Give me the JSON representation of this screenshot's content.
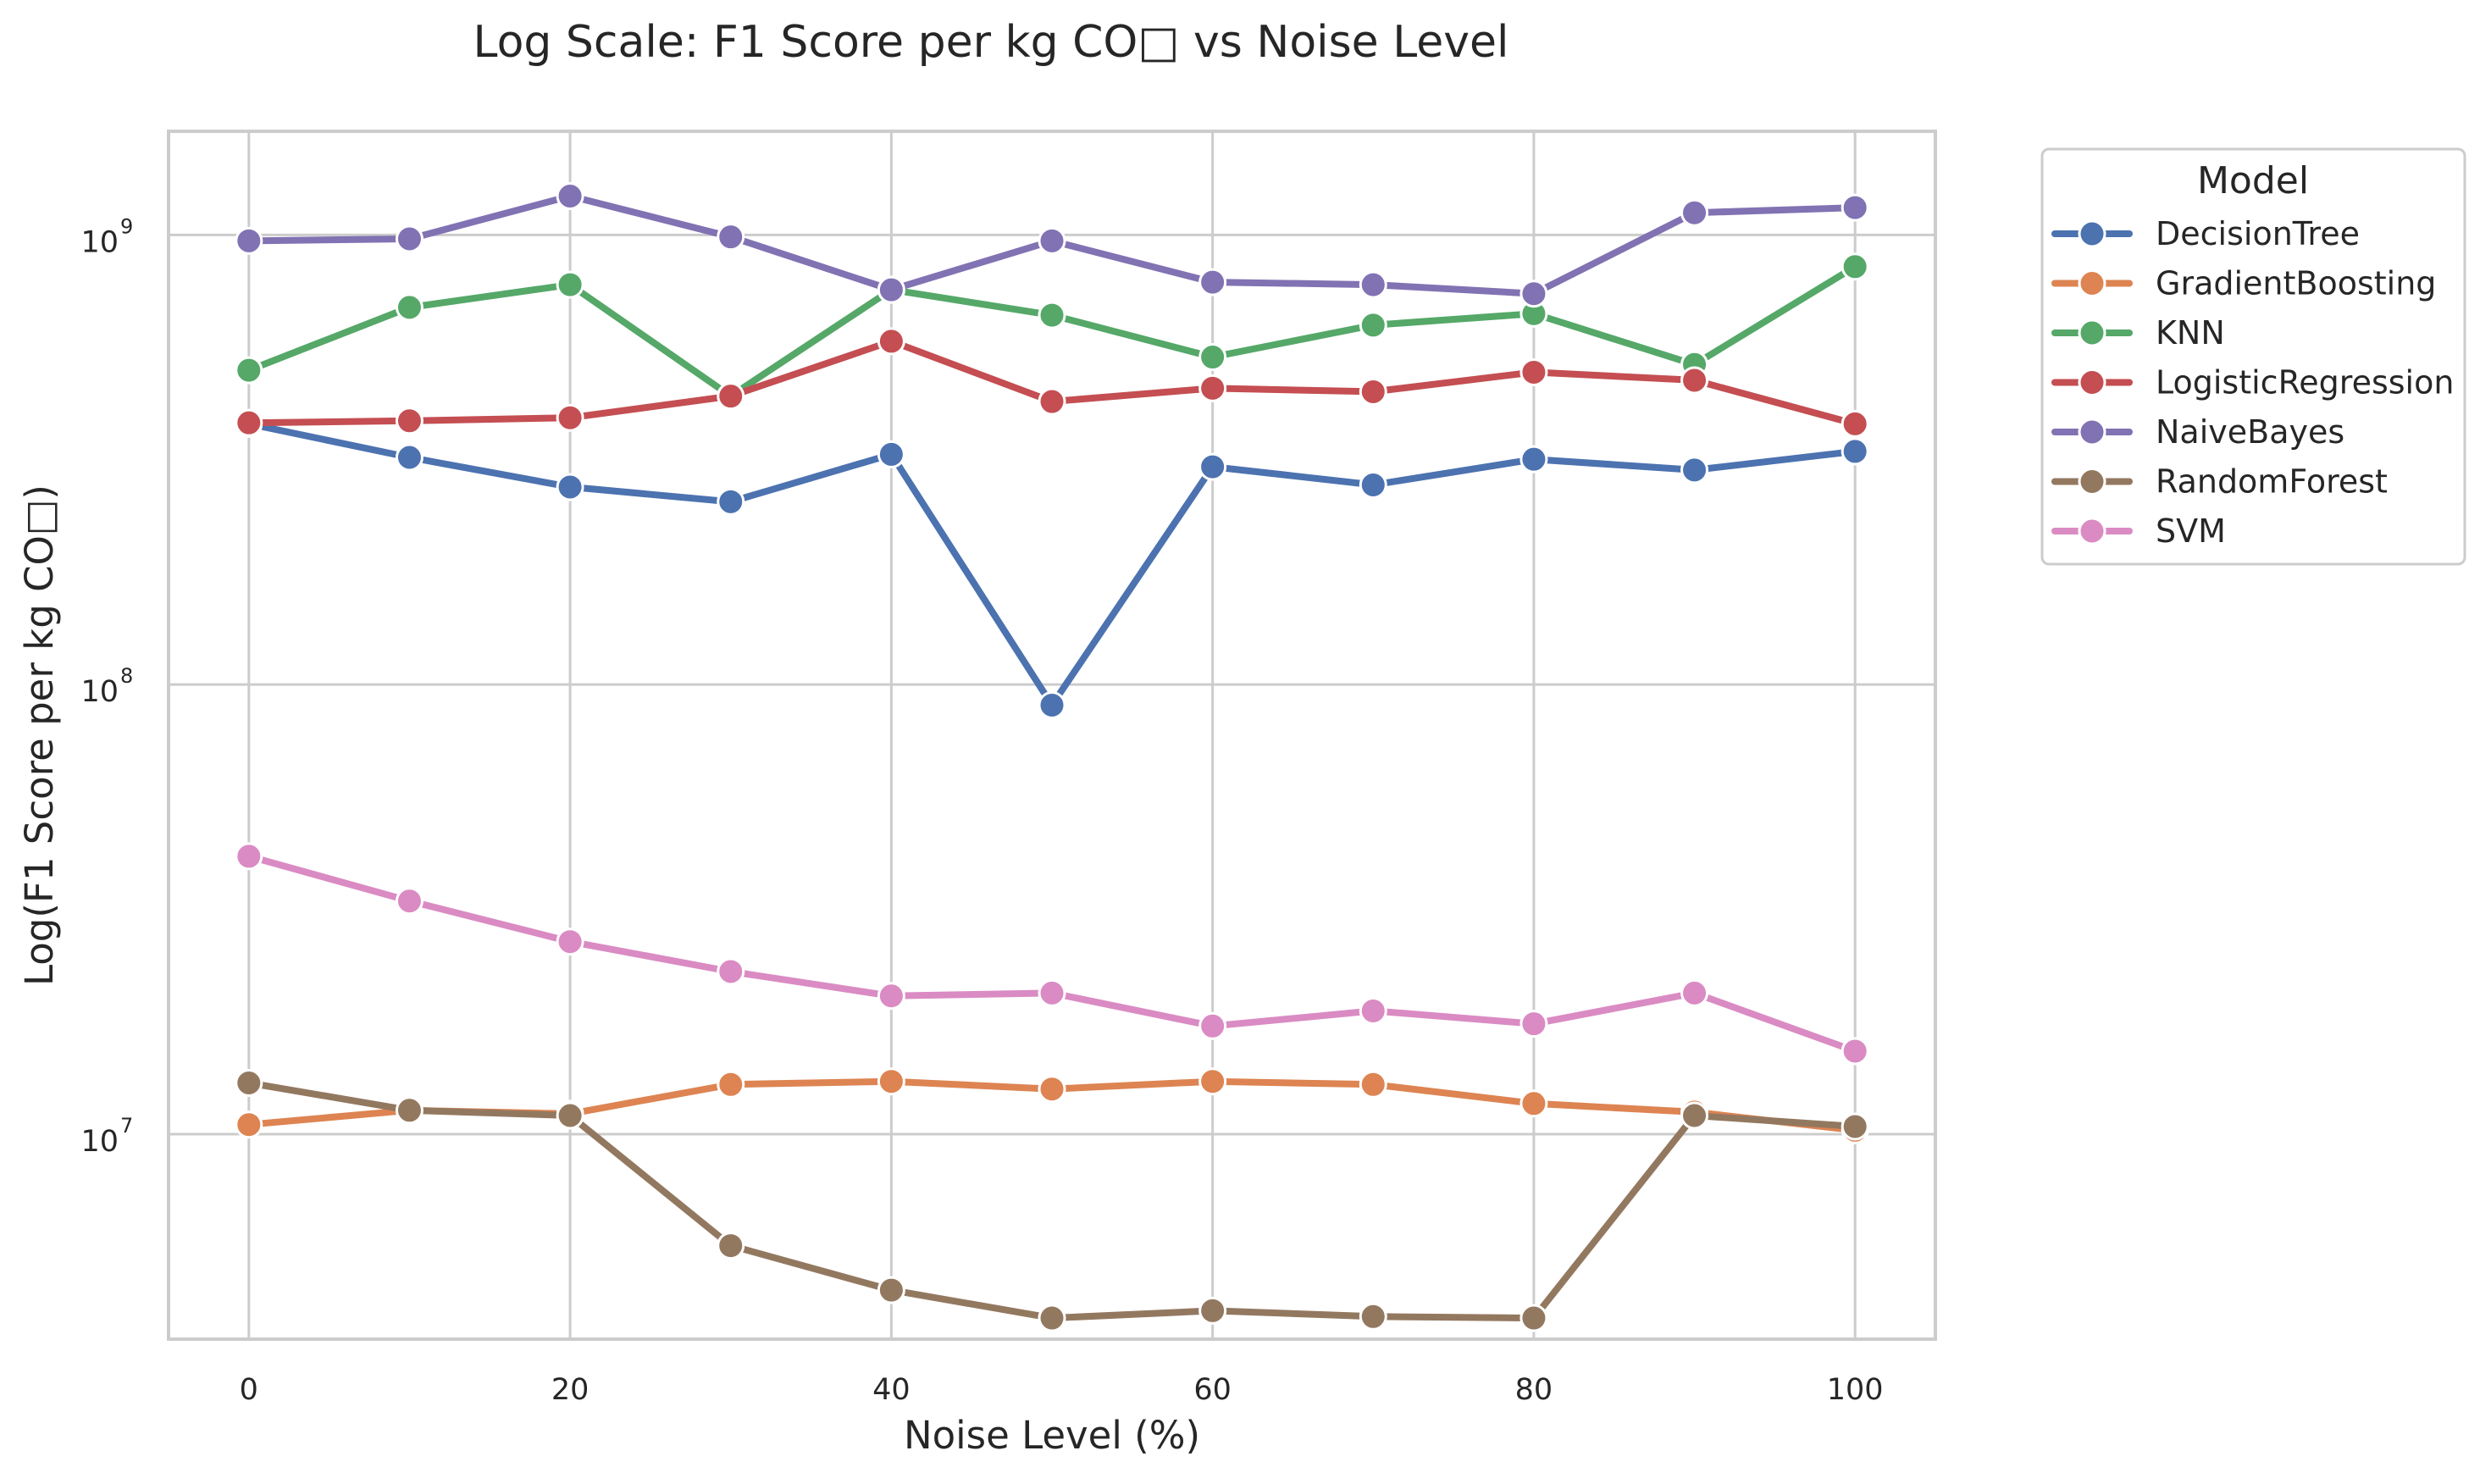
{
  "chart_data": {
    "type": "line",
    "title": "Log Scale: F1 Score per kg CO□ vs Noise Level",
    "xlabel": "Noise Level (%)",
    "ylabel": "Log(F1 Score per kg CO□)",
    "x": [
      0,
      10,
      20,
      30,
      40,
      50,
      60,
      70,
      80,
      90,
      100
    ],
    "xlim": [
      -5,
      105
    ],
    "xticks": [
      0,
      20,
      40,
      60,
      80,
      100
    ],
    "xtick_labels": [
      "0",
      "20",
      "40",
      "60",
      "80",
      "100"
    ],
    "yscale": "log",
    "ylim": [
      3500000,
      1700000000
    ],
    "yticks": [
      {
        "value": 10000000,
        "base": "10",
        "exp": "7"
      },
      {
        "value": 100000000,
        "base": "10",
        "exp": "8"
      },
      {
        "value": 1000000000,
        "base": "10",
        "exp": "9"
      }
    ],
    "grid": true,
    "legend_title": "Model",
    "legend_position": "outside-top-right",
    "series": [
      {
        "name": "DecisionTree",
        "color": "#4c72b0",
        "values": [
          380000000,
          320000000,
          275000000,
          255000000,
          325000000,
          90000000,
          305000000,
          278000000,
          317000000,
          300000000,
          330000000
        ]
      },
      {
        "name": "GradientBoosting",
        "color": "#dd8452",
        "values": [
          10500000,
          11300000,
          11100000,
          12900000,
          13100000,
          12600000,
          13100000,
          12900000,
          11700000,
          11200000,
          10200000
        ]
      },
      {
        "name": "KNN",
        "color": "#55a868",
        "values": [
          500000000,
          690000000,
          775000000,
          438000000,
          755000000,
          663000000,
          535000000,
          630000000,
          668000000,
          515000000,
          850000000
        ]
      },
      {
        "name": "LogisticRegression",
        "color": "#c44e52",
        "values": [
          382000000,
          386000000,
          392000000,
          438000000,
          580000000,
          426000000,
          456000000,
          448000000,
          495000000,
          475000000,
          380000000
        ]
      },
      {
        "name": "NaiveBayes",
        "color": "#8172b3",
        "values": [
          970000000,
          980000000,
          1220000000,
          990000000,
          755000000,
          970000000,
          785000000,
          775000000,
          740000000,
          1120000000,
          1150000000
        ]
      },
      {
        "name": "RandomForest",
        "color": "#937860",
        "values": [
          13000000,
          11300000,
          11000000,
          5650000,
          4500000,
          3900000,
          4050000,
          3930000,
          3900000,
          11000000,
          10400000
        ]
      },
      {
        "name": "SVM",
        "color": "#da8bc3",
        "values": [
          41500000,
          33000000,
          26800000,
          23000000,
          20300000,
          20600000,
          17400000,
          18800000,
          17600000,
          20600000,
          15300000
        ]
      }
    ]
  }
}
